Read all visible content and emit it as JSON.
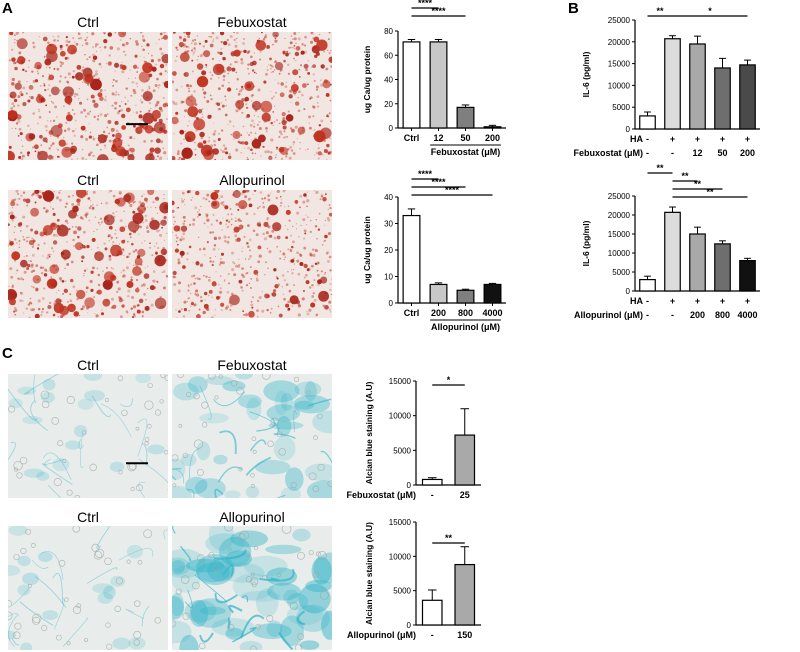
{
  "panels": {
    "A": {
      "label": "A",
      "images": [
        {
          "caption": "Ctrl",
          "stain": "alizarin-red-dense"
        },
        {
          "caption": "Febuxostat",
          "stain": "alizarin-red-dense"
        },
        {
          "caption": "Ctrl",
          "stain": "alizarin-red-dense"
        },
        {
          "caption": "Allopurinol",
          "stain": "alizarin-red-sparse"
        }
      ]
    },
    "B": {
      "label": "B"
    },
    "C": {
      "label": "C",
      "images": [
        {
          "caption": "Ctrl",
          "stain": "alcian-blue-faint"
        },
        {
          "caption": "Febuxostat",
          "stain": "alcian-blue-medium"
        },
        {
          "caption": "Ctrl",
          "stain": "alcian-blue-faint"
        },
        {
          "caption": "Allopurinol",
          "stain": "alcian-blue-strong"
        }
      ]
    }
  },
  "colors": {
    "red_stain": "#c0321f",
    "blue_stain": "#2fb3c8",
    "tissue_bg": "#f1e6e2",
    "blue_bg": "#e8ecea"
  },
  "chart_data": [
    {
      "id": "A1",
      "type": "bar",
      "ylabel": "ug Ca/ug protein",
      "ylim": [
        0,
        80
      ],
      "yticks": [
        0,
        20,
        40,
        60,
        80
      ],
      "categories": [
        "Ctrl",
        "12",
        "50",
        "200"
      ],
      "values": [
        71,
        71,
        17,
        1
      ],
      "errors": [
        2,
        2,
        2,
        1.2
      ],
      "fills": [
        "#ffffff",
        "#c8c8c8",
        "#7f7f7f",
        "#3a3a3a"
      ],
      "group_label": "Febuxostat (μM)",
      "sig": [
        {
          "from": 0,
          "to": 1,
          "label": "****"
        },
        {
          "from": 0,
          "to": 2,
          "label": "****"
        }
      ]
    },
    {
      "id": "A2",
      "type": "bar",
      "ylabel": "ug Ca/ug protein",
      "ylim": [
        0,
        40
      ],
      "yticks": [
        0,
        10,
        20,
        30,
        40
      ],
      "categories": [
        "Ctrl",
        "200",
        "800",
        "4000"
      ],
      "values": [
        33,
        7,
        4.8,
        7
      ],
      "errors": [
        2.5,
        0.6,
        0.4,
        0.4
      ],
      "fills": [
        "#ffffff",
        "#c8c8c8",
        "#7f7f7f",
        "#111111"
      ],
      "group_label": "Allopurinol (μM)",
      "sig": [
        {
          "from": 0,
          "to": 1,
          "label": "****"
        },
        {
          "from": 0,
          "to": 2,
          "label": "****"
        },
        {
          "from": 0,
          "to": 3,
          "label": "****"
        }
      ]
    },
    {
      "id": "B1",
      "type": "bar",
      "ylabel": "IL-6 (pg/ml)",
      "ylim": [
        0,
        25000
      ],
      "yticks": [
        0,
        5000,
        10000,
        15000,
        20000,
        25000
      ],
      "values": [
        3000,
        20700,
        19500,
        14000,
        14700
      ],
      "errors": [
        900,
        700,
        1800,
        2200,
        1100
      ],
      "fills": [
        "#ffffff",
        "#dcdcdc",
        "#a9a9a9",
        "#6e6e6e",
        "#4a4a4a"
      ],
      "row1_label": "HA",
      "row1": [
        "-",
        "+",
        "+",
        "+",
        "+"
      ],
      "row2_label": "Febuxostat (μM)",
      "row2": [
        "-",
        "-",
        "12",
        "50",
        "200"
      ],
      "sig": [
        {
          "from": 0,
          "to": 1,
          "label": "**"
        },
        {
          "from": 1,
          "to": 4,
          "label": "*"
        }
      ]
    },
    {
      "id": "B2",
      "type": "bar",
      "ylabel": "IL-6 (pg/ml)",
      "ylim": [
        0,
        25000
      ],
      "yticks": [
        0,
        5000,
        10000,
        15000,
        20000,
        25000
      ],
      "values": [
        3000,
        20700,
        15000,
        12400,
        8000
      ],
      "errors": [
        900,
        1400,
        1800,
        800,
        600
      ],
      "fills": [
        "#ffffff",
        "#dcdcdc",
        "#a9a9a9",
        "#6e6e6e",
        "#111111"
      ],
      "row1_label": "HA",
      "row1": [
        "-",
        "+",
        "+",
        "+",
        "+"
      ],
      "row2_label": "Allopurinol (μM)",
      "row2": [
        "-",
        "-",
        "200",
        "800",
        "4000"
      ],
      "sig": [
        {
          "from": 0,
          "to": 1,
          "label": "**"
        },
        {
          "from": 1,
          "to": 2,
          "label": "**"
        },
        {
          "from": 1,
          "to": 3,
          "label": "**"
        },
        {
          "from": 1,
          "to": 4,
          "label": "**"
        }
      ]
    },
    {
      "id": "C1",
      "type": "bar",
      "ylabel": "Alcian blue staining (A.U)",
      "ylim": [
        0,
        15000
      ],
      "yticks": [
        0,
        5000,
        10000,
        15000
      ],
      "values": [
        800,
        7200
      ],
      "errors": [
        250,
        3800
      ],
      "fills": [
        "#ffffff",
        "#a9a9a9"
      ],
      "row1_label": "Febuxostat (μM)",
      "row1": [
        "-",
        "25"
      ],
      "sig": [
        {
          "from": 0,
          "to": 1,
          "label": "*"
        }
      ]
    },
    {
      "id": "C2",
      "type": "bar",
      "ylabel": "Alcian blue staining (A.U)",
      "ylim": [
        0,
        15000
      ],
      "yticks": [
        0,
        5000,
        10000,
        15000
      ],
      "values": [
        3600,
        8800
      ],
      "errors": [
        1500,
        2600
      ],
      "fills": [
        "#ffffff",
        "#a9a9a9"
      ],
      "row1_label": "Allopurinol (μM)",
      "row1": [
        "-",
        "150"
      ],
      "sig": [
        {
          "from": 0,
          "to": 1,
          "label": "**"
        }
      ]
    }
  ]
}
